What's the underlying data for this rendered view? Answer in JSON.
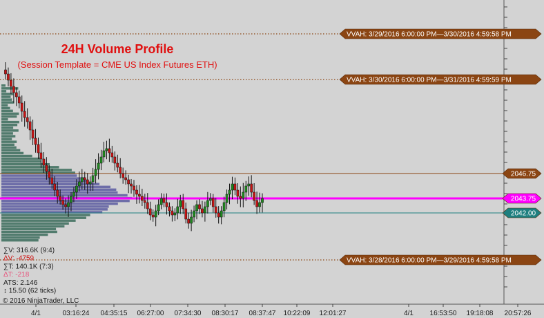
{
  "chart": {
    "title": "24H Volume Profile",
    "subtitle": "(Session Template = CME US Index Futures ETH)",
    "copyright": "© 2016 NinjaTrader, LLC"
  },
  "stats": [
    {
      "text": "∑V: 316.6K (9:4)",
      "color": "#1a1a1a"
    },
    {
      "text": "ΔV: -4759",
      "color": "#d01010"
    },
    {
      "text": "∑T: 140.1K (7:3)",
      "color": "#1a1a1a"
    },
    {
      "text": "ΔT: -218",
      "color": "#e8507a"
    },
    {
      "text": "ATS: 2.146",
      "color": "#1a1a1a"
    },
    {
      "text": "↕ 15.50 (62 ticks)",
      "color": "#1a1a1a"
    }
  ],
  "vvah_labels": [
    "VVAH: 3/29/2016 6:00:00 PM—3/30/2016 4:59:58 PM",
    "VVAH: 3/30/2016 6:00:00 PM—3/31/2016 4:59:59 PM",
    "VVAH: 3/28/2016 6:00:00 PM—3/29/2016 4:59:58 PM"
  ],
  "colors": {
    "background": "#d3d3d3",
    "label_fill": "#8b4513",
    "label_text": "#ffffff",
    "vvah_line": "#8b4513",
    "poc": "#ff00ff",
    "val": "#1e7f7f",
    "vah": "#8b4513",
    "candle_up": "#1f8a1f",
    "candle_down": "#c81414",
    "profile_blue": "#5a5aa0",
    "profile_green": "#3a6b5a"
  },
  "chart_data": {
    "type": "candlestick",
    "x_tick_labels": [
      "4/1",
      "03:16:24",
      "04:35:15",
      "06:27:00",
      "07:34:30",
      "08:30:17",
      "08:37:47",
      "10:22:09",
      "12:01:27",
      "4/1",
      "16:53:50",
      "19:18:08",
      "20:57:26"
    ],
    "price_labels": [
      {
        "value": 2046.75,
        "text": "2046.75",
        "role": "vah"
      },
      {
        "value": 2043.75,
        "text": "2043.75",
        "role": "poc"
      },
      {
        "value": 2042.0,
        "text": "2042.00",
        "role": "val"
      }
    ],
    "ylim": [
      2031.0,
      2067.5
    ],
    "grid": false,
    "closes": [
      2058.75,
      2058.0,
      2057.25,
      2056.5,
      2056.0,
      2055.25,
      2054.25,
      2053.5,
      2053.0,
      2052.0,
      2051.0,
      2050.25,
      2049.25,
      2048.5,
      2047.75,
      2047.0,
      2046.25,
      2045.5,
      2044.75,
      2044.0,
      2043.5,
      2043.0,
      2042.75,
      2043.25,
      2044.0,
      2044.5,
      2045.25,
      2045.75,
      2046.25,
      2046.0,
      2045.5,
      2045.75,
      2046.5,
      2047.25,
      2048.0,
      2048.75,
      2049.5,
      2049.75,
      2049.25,
      2048.75,
      2048.0,
      2047.5,
      2046.75,
      2046.25,
      2046.0,
      2045.5,
      2045.25,
      2044.75,
      2044.25,
      2044.0,
      2043.5,
      2043.25,
      2042.5,
      2041.75,
      2041.5,
      2042.25,
      2043.0,
      2043.75,
      2043.25,
      2042.75,
      2042.25,
      2041.75,
      2042.0,
      2042.75,
      2043.5,
      2042.5,
      2041.25,
      2040.75,
      2041.5,
      2042.25,
      2043.0,
      2042.5,
      2042.0,
      2042.75,
      2043.5,
      2043.75,
      2042.75,
      2042.0,
      2041.5,
      2042.25,
      2043.25,
      2044.25,
      2044.75,
      2045.5,
      2044.75,
      2044.0,
      2043.75,
      2044.5,
      2045.25,
      2045.5,
      2044.5,
      2043.5,
      2042.75,
      2043.25,
      2043.75
    ]
  }
}
